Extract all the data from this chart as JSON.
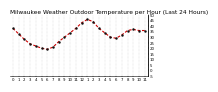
{
  "title": "Milwaukee Weather Outdoor Temperature per Hour (Last 24 Hours)",
  "hours": [
    0,
    1,
    2,
    3,
    4,
    5,
    6,
    7,
    8,
    9,
    10,
    11,
    12,
    13,
    14,
    15,
    16,
    17,
    18,
    19,
    20,
    21,
    22,
    23
  ],
  "temps": [
    38,
    33,
    28,
    24,
    22,
    20,
    19,
    21,
    26,
    30,
    34,
    38,
    43,
    46,
    44,
    38,
    34,
    30,
    29,
    32,
    36,
    37,
    36,
    36
  ],
  "line_color": "#cc0000",
  "marker_color": "#111111",
  "bg_color": "#ffffff",
  "grid_color": "#bbbbbb",
  "ylim": [
    -5,
    50
  ],
  "ytick_vals": [
    50,
    45,
    40,
    35,
    30,
    25,
    20,
    15,
    10,
    5,
    0,
    -5
  ],
  "ytick_labels": [
    "50",
    "45",
    "40",
    "35",
    "30",
    "25",
    "20",
    "15",
    "10",
    "5",
    "0",
    "-5"
  ],
  "xtick_labels": [
    "0",
    "1",
    "2",
    "3",
    "4",
    "5",
    "6",
    "7",
    "8",
    "9",
    "10",
    "11",
    "12",
    "1",
    "2",
    "3",
    "4",
    "5",
    "6",
    "7",
    "8",
    "9",
    "10",
    "11"
  ],
  "title_fontsize": 4.2,
  "tick_fontsize": 2.8,
  "line_width": 0.8,
  "marker_size": 1.5
}
